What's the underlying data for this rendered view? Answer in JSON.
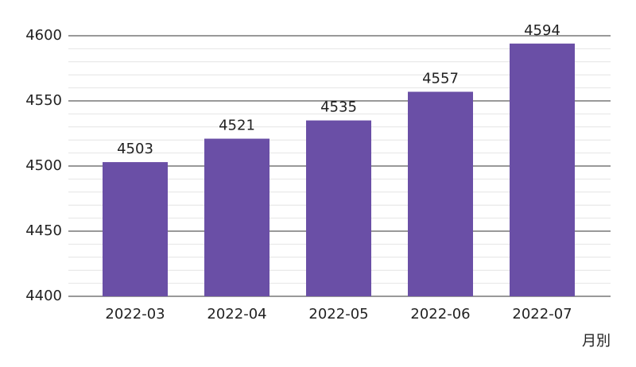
{
  "chart_data": {
    "type": "bar",
    "x_label": "月別",
    "categories": [
      "2022-03",
      "2022-04",
      "2022-05",
      "2022-06",
      "2022-07"
    ],
    "values": [
      4503,
      4521,
      4535,
      4557,
      4594
    ],
    "color": "#6a4fa6",
    "ylim": [
      4400,
      4600
    ],
    "yticks": [
      4400,
      4450,
      4500,
      4550,
      4600
    ],
    "minor_yticks": [
      4410,
      4420,
      4430,
      4440,
      4460,
      4470,
      4480,
      4490,
      4510,
      4520,
      4530,
      4540,
      4560,
      4570,
      4580,
      4590
    ],
    "grid": true,
    "value_labels_shown": true
  }
}
